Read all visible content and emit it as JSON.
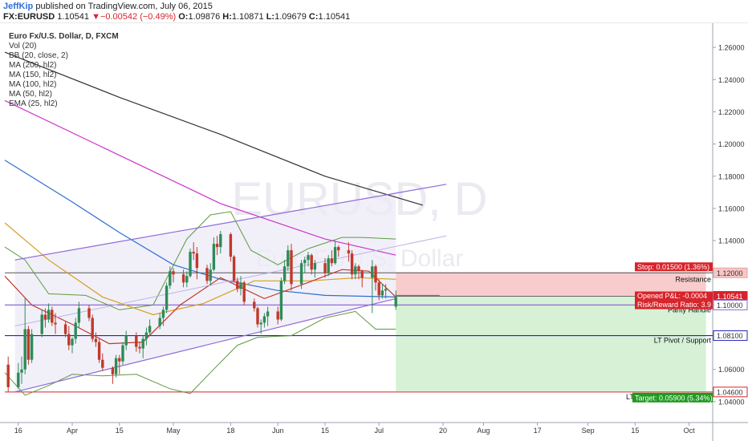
{
  "header": {
    "author": "JeffKip",
    "published": "published on TradingView.com, July 06, 2015",
    "symbol": "FX:EURUSD",
    "last": "1.10541",
    "arrow": "▼",
    "change": "−0.00542 (−0.49%)",
    "o_label": "O:",
    "o": "1.09876",
    "h_label": "H:",
    "h": "1.10871",
    "l_label": "L:",
    "l": "1.09679",
    "c_label": "C:",
    "c": "1.10541"
  },
  "legend": {
    "title": "Euro Fx/U.S. Dollar, D, FXCM",
    "indicators": [
      "Vol (20)",
      "BB (20, close, 2)",
      "MA (200, hl2)",
      "MA (150, hl2)",
      "MA (100, hl2)",
      "MA (50, hl2)",
      "EMA (25, hl2)"
    ]
  },
  "watermark": {
    "symbol": "EURUSD, D",
    "name": "Euro Fx/U.S. Dollar"
  },
  "colors": {
    "up": "#2e8b57",
    "down": "#c0392b",
    "ma200": "#333333",
    "ma150": "#cc33cc",
    "ma100": "#2d6fd1",
    "ma50": "#d5a021",
    "ema25": "#c0392b",
    "bb": "#5f9a3f",
    "channel": "#8e6ad8",
    "resistance": "#555555",
    "pivot": "#2424b8",
    "target": "#d8232a",
    "stop_zone": "#f7c6c6",
    "target_zone": "#d2efd2",
    "price_tag": "#d8232a",
    "target_tag": "#1f9a1f"
  },
  "annotations": {
    "resistance": "Resistance",
    "parity": "Parity Handle",
    "lt_pivot": "LT Pivot / Support",
    "lt_target_prefix": "LT",
    "stop": "Stop: 0.01500 (1.36%)",
    "opened_pnl": "Opened P&L: -0.0004",
    "risk_reward": "Risk/Reward Ratio: 3.9",
    "target": "Target: 0.05900 (5.34%)"
  },
  "chart_data": {
    "type": "candlestick",
    "y_axis": {
      "ticks": [
        "1.04000",
        "1.06000",
        "1.08000",
        "1.10000",
        "1.12000",
        "1.14000",
        "1.16000",
        "1.18000",
        "1.20000",
        "1.22000",
        "1.24000",
        "1.26000"
      ],
      "tick_values": [
        1.04,
        1.06,
        1.08,
        1.1,
        1.12,
        1.14,
        1.16,
        1.18,
        1.2,
        1.22,
        1.24,
        1.26
      ],
      "ylim": [
        1.027,
        1.275
      ]
    },
    "x_axis": {
      "labels": [
        "16",
        "Apr",
        "15",
        "May",
        "18",
        "Jun",
        "15",
        "Jul",
        "20",
        "Aug",
        "17",
        "Sep",
        "15",
        "Oct"
      ],
      "label_dates": [
        "2015-03-16",
        "2015-04-01",
        "2015-04-15",
        "2015-05-01",
        "2015-05-18",
        "2015-06-01",
        "2015-06-15",
        "2015-07-01",
        "2015-07-20",
        "2015-08-01",
        "2015-08-17",
        "2015-09-01",
        "2015-09-15",
        "2015-10-01"
      ],
      "xlim": [
        "2015-03-12",
        "2015-10-08"
      ]
    },
    "price_labels": {
      "resistance": {
        "value": 1.12,
        "text": "1.12000"
      },
      "last": {
        "value": 1.10541,
        "text": "1.10541"
      },
      "parity": {
        "value": 1.1,
        "text": "1.10000"
      },
      "pivot": {
        "value": 1.081,
        "text": "1.08100"
      },
      "target": {
        "value": 1.046,
        "text": "1.04600"
      }
    },
    "levels": {
      "resistance": 1.12,
      "parity": 1.1,
      "lt_pivot": 1.081,
      "lt_target": 1.046
    },
    "position": {
      "entry_date": "2015-07-06",
      "end_date": "2015-10-06",
      "entry": 1.10541,
      "stop": 1.12041,
      "target": 1.04641
    },
    "channel": {
      "upper": [
        [
          "2015-03-15",
          1.128
        ],
        [
          "2015-07-21",
          1.175
        ]
      ],
      "lower": [
        [
          "2015-03-15",
          1.046
        ],
        [
          "2015-07-06",
          1.104
        ]
      ],
      "mid": [
        [
          "2015-03-15",
          1.087
        ],
        [
          "2015-07-21",
          1.143
        ]
      ]
    },
    "ma200": [
      [
        "2015-03-12",
        1.257
      ],
      [
        "2015-04-15",
        1.229
      ],
      [
        "2015-05-15",
        1.206
      ],
      [
        "2015-06-15",
        1.18
      ],
      [
        "2015-07-14",
        1.162
      ]
    ],
    "ma150": [
      [
        "2015-03-12",
        1.227
      ],
      [
        "2015-04-15",
        1.193
      ],
      [
        "2015-05-15",
        1.163
      ],
      [
        "2015-06-15",
        1.141
      ],
      [
        "2015-07-06",
        1.131
      ]
    ],
    "ma100": [
      [
        "2015-03-12",
        1.19
      ],
      [
        "2015-04-01",
        1.164
      ],
      [
        "2015-04-15",
        1.145
      ],
      [
        "2015-05-01",
        1.125
      ],
      [
        "2015-05-15",
        1.116
      ],
      [
        "2015-06-01",
        1.109
      ],
      [
        "2015-06-15",
        1.106
      ],
      [
        "2015-07-06",
        1.105
      ]
    ],
    "ma50": [
      [
        "2015-03-12",
        1.151
      ],
      [
        "2015-03-25",
        1.128
      ],
      [
        "2015-04-10",
        1.105
      ],
      [
        "2015-04-25",
        1.094
      ],
      [
        "2015-05-10",
        1.101
      ],
      [
        "2015-05-25",
        1.115
      ],
      [
        "2015-06-10",
        1.115
      ],
      [
        "2015-06-25",
        1.117
      ],
      [
        "2015-07-06",
        1.116
      ]
    ],
    "ema25": [
      [
        "2015-03-12",
        1.118
      ],
      [
        "2015-03-20",
        1.1
      ],
      [
        "2015-04-01",
        1.088
      ],
      [
        "2015-04-12",
        1.076
      ],
      [
        "2015-04-22",
        1.077
      ],
      [
        "2015-05-03",
        1.1
      ],
      [
        "2015-05-15",
        1.117
      ],
      [
        "2015-05-28",
        1.104
      ],
      [
        "2015-06-10",
        1.114
      ],
      [
        "2015-06-20",
        1.122
      ],
      [
        "2015-06-28",
        1.121
      ],
      [
        "2015-07-06",
        1.105
      ]
    ],
    "bb_upper": [
      [
        "2015-03-12",
        1.136
      ],
      [
        "2015-03-18",
        1.128
      ],
      [
        "2015-03-25",
        1.107
      ],
      [
        "2015-04-05",
        1.106
      ],
      [
        "2015-04-15",
        1.097
      ],
      [
        "2015-04-25",
        1.1
      ],
      [
        "2015-05-05",
        1.141
      ],
      [
        "2015-05-12",
        1.156
      ],
      [
        "2015-05-18",
        1.158
      ],
      [
        "2015-05-24",
        1.134
      ],
      [
        "2015-06-01",
        1.125
      ],
      [
        "2015-06-10",
        1.135
      ],
      [
        "2015-06-20",
        1.142
      ],
      [
        "2015-06-26",
        1.142
      ],
      [
        "2015-07-06",
        1.141
      ]
    ],
    "bb_lower": [
      [
        "2015-03-12",
        1.058
      ],
      [
        "2015-03-18",
        1.044
      ],
      [
        "2015-03-25",
        1.05
      ],
      [
        "2015-04-01",
        1.057
      ],
      [
        "2015-04-10",
        1.056
      ],
      [
        "2015-04-20",
        1.057
      ],
      [
        "2015-04-30",
        1.048
      ],
      [
        "2015-05-06",
        1.045
      ],
      [
        "2015-05-12",
        1.058
      ],
      [
        "2015-05-20",
        1.075
      ],
      [
        "2015-05-26",
        1.08
      ],
      [
        "2015-06-05",
        1.081
      ],
      [
        "2015-06-15",
        1.092
      ],
      [
        "2015-06-24",
        1.096
      ],
      [
        "2015-06-30",
        1.085
      ],
      [
        "2015-07-06",
        1.085
      ]
    ],
    "candles": [
      [
        "2015-03-13",
        1.063,
        1.068,
        1.046,
        1.049
      ],
      [
        "2015-03-16",
        1.049,
        1.064,
        1.048,
        1.058
      ],
      [
        "2015-03-17",
        1.058,
        1.068,
        1.051,
        1.06
      ],
      [
        "2015-03-18",
        1.06,
        1.104,
        1.057,
        1.085
      ],
      [
        "2015-03-19",
        1.085,
        1.087,
        1.063,
        1.066
      ],
      [
        "2015-03-20",
        1.066,
        1.085,
        1.064,
        1.082
      ],
      [
        "2015-03-23",
        1.082,
        1.097,
        1.08,
        1.094
      ],
      [
        "2015-03-24",
        1.094,
        1.098,
        1.086,
        1.091
      ],
      [
        "2015-03-25",
        1.091,
        1.101,
        1.089,
        1.097
      ],
      [
        "2015-03-26",
        1.097,
        1.099,
        1.087,
        1.089
      ],
      [
        "2015-03-27",
        1.089,
        1.095,
        1.082,
        1.088
      ],
      [
        "2015-03-30",
        1.088,
        1.09,
        1.08,
        1.082
      ],
      [
        "2015-03-31",
        1.082,
        1.087,
        1.072,
        1.075
      ],
      [
        "2015-04-01",
        1.075,
        1.08,
        1.07,
        1.079
      ],
      [
        "2015-04-02",
        1.079,
        1.092,
        1.076,
        1.089
      ],
      [
        "2015-04-03",
        1.089,
        1.102,
        1.086,
        1.098
      ],
      [
        "2015-04-06",
        1.098,
        1.1,
        1.09,
        1.092
      ],
      [
        "2015-04-07",
        1.092,
        1.094,
        1.077,
        1.079
      ],
      [
        "2015-04-08",
        1.079,
        1.083,
        1.074,
        1.077
      ],
      [
        "2015-04-09",
        1.077,
        1.079,
        1.064,
        1.066
      ],
      [
        "2015-04-10",
        1.066,
        1.07,
        1.059,
        1.061
      ],
      [
        "2015-04-13",
        1.061,
        1.062,
        1.051,
        1.057
      ],
      [
        "2015-04-14",
        1.057,
        1.069,
        1.055,
        1.067
      ],
      [
        "2015-04-15",
        1.067,
        1.069,
        1.057,
        1.065
      ],
      [
        "2015-04-16",
        1.065,
        1.077,
        1.063,
        1.075
      ],
      [
        "2015-04-17",
        1.075,
        1.084,
        1.072,
        1.081
      ],
      [
        "2015-04-20",
        1.081,
        1.083,
        1.071,
        1.074
      ],
      [
        "2015-04-21",
        1.074,
        1.077,
        1.07,
        1.073
      ],
      [
        "2015-04-22",
        1.073,
        1.081,
        1.067,
        1.079
      ],
      [
        "2015-04-23",
        1.079,
        1.086,
        1.075,
        1.083
      ],
      [
        "2015-04-24",
        1.083,
        1.091,
        1.081,
        1.087
      ],
      [
        "2015-04-27",
        1.087,
        1.095,
        1.085,
        1.092
      ],
      [
        "2015-04-28",
        1.092,
        1.099,
        1.087,
        1.097
      ],
      [
        "2015-04-29",
        1.097,
        1.114,
        1.095,
        1.112
      ],
      [
        "2015-04-30",
        1.112,
        1.124,
        1.11,
        1.121
      ],
      [
        "2015-05-01",
        1.121,
        1.123,
        1.114,
        1.119
      ],
      [
        "2015-05-04",
        1.119,
        1.122,
        1.111,
        1.114
      ],
      [
        "2015-05-05",
        1.114,
        1.121,
        1.111,
        1.118
      ],
      [
        "2015-05-06",
        1.118,
        1.135,
        1.117,
        1.133
      ],
      [
        "2015-05-07",
        1.133,
        1.139,
        1.128,
        1.132
      ],
      [
        "2015-05-08",
        1.132,
        1.136,
        1.116,
        1.123
      ],
      [
        "2015-05-11",
        1.123,
        1.125,
        1.113,
        1.115
      ],
      [
        "2015-05-12",
        1.115,
        1.126,
        1.112,
        1.122
      ],
      [
        "2015-05-13",
        1.122,
        1.142,
        1.121,
        1.138
      ],
      [
        "2015-05-14",
        1.138,
        1.143,
        1.131,
        1.136
      ],
      [
        "2015-05-15",
        1.136,
        1.146,
        1.132,
        1.144
      ],
      [
        "2015-05-18",
        1.144,
        1.145,
        1.127,
        1.13
      ],
      [
        "2015-05-19",
        1.13,
        1.131,
        1.114,
        1.115
      ],
      [
        "2015-05-20",
        1.115,
        1.117,
        1.108,
        1.11
      ],
      [
        "2015-05-21",
        1.11,
        1.118,
        1.106,
        1.114
      ],
      [
        "2015-05-22",
        1.114,
        1.115,
        1.1,
        1.102
      ],
      [
        "2015-05-25",
        1.102,
        1.104,
        1.096,
        1.098
      ],
      [
        "2015-05-26",
        1.098,
        1.099,
        1.086,
        1.088
      ],
      [
        "2015-05-27",
        1.088,
        1.091,
        1.082,
        1.089
      ],
      [
        "2015-05-28",
        1.089,
        1.095,
        1.086,
        1.093
      ],
      [
        "2015-05-29",
        1.093,
        1.099,
        1.087,
        1.096
      ],
      [
        "2015-06-01",
        1.096,
        1.099,
        1.088,
        1.091
      ],
      [
        "2015-06-02",
        1.091,
        1.117,
        1.09,
        1.115
      ],
      [
        "2015-06-03",
        1.115,
        1.128,
        1.113,
        1.124
      ],
      [
        "2015-06-04",
        1.124,
        1.137,
        1.121,
        1.134
      ],
      [
        "2015-06-05",
        1.134,
        1.138,
        1.109,
        1.113
      ],
      [
        "2015-06-08",
        1.113,
        1.128,
        1.11,
        1.126
      ],
      [
        "2015-06-09",
        1.126,
        1.13,
        1.12,
        1.128
      ],
      [
        "2015-06-10",
        1.128,
        1.133,
        1.124,
        1.131
      ],
      [
        "2015-06-11",
        1.131,
        1.132,
        1.119,
        1.122
      ],
      [
        "2015-06-12",
        1.122,
        1.128,
        1.117,
        1.126
      ],
      [
        "2015-06-15",
        1.126,
        1.129,
        1.117,
        1.12
      ],
      [
        "2015-06-16",
        1.12,
        1.131,
        1.118,
        1.129
      ],
      [
        "2015-06-17",
        1.129,
        1.134,
        1.124,
        1.126
      ],
      [
        "2015-06-18",
        1.126,
        1.14,
        1.125,
        1.136
      ],
      [
        "2015-06-19",
        1.136,
        1.137,
        1.13,
        1.134
      ],
      [
        "2015-06-22",
        1.134,
        1.139,
        1.127,
        1.132
      ],
      [
        "2015-06-23",
        1.132,
        1.134,
        1.116,
        1.119
      ],
      [
        "2015-06-24",
        1.119,
        1.126,
        1.116,
        1.124
      ],
      [
        "2015-06-25",
        1.124,
        1.125,
        1.116,
        1.121
      ],
      [
        "2015-06-26",
        1.121,
        1.122,
        1.111,
        1.117
      ],
      [
        "2015-06-29",
        1.117,
        1.128,
        1.095,
        1.124
      ],
      [
        "2015-06-30",
        1.124,
        1.125,
        1.109,
        1.114
      ],
      [
        "2015-07-01",
        1.114,
        1.116,
        1.103,
        1.106
      ],
      [
        "2015-07-02",
        1.106,
        1.113,
        1.104,
        1.109
      ],
      [
        "2015-07-03",
        1.109,
        1.113,
        1.104,
        1.11
      ],
      [
        "2015-07-06",
        1.099,
        1.109,
        1.097,
        1.105
      ]
    ]
  }
}
